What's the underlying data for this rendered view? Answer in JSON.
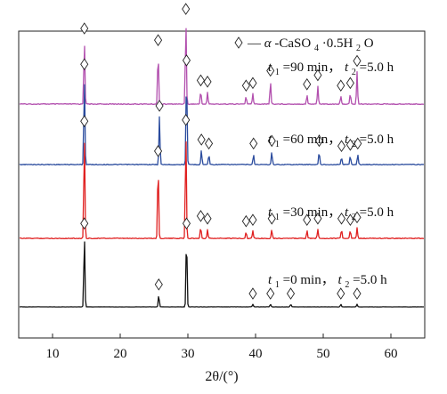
{
  "chart_data": {
    "type": "line",
    "title": "",
    "xlabel": "2θ/(°)",
    "ylabel": "",
    "xlim": [
      5,
      65
    ],
    "x_ticks": [
      10,
      20,
      30,
      40,
      50,
      60
    ],
    "y_ticks": [],
    "grid": false,
    "legend": {
      "placement": "top-right",
      "marker": "diamond",
      "dash": "—",
      "alpha": "α",
      "phase": "-CaSO",
      "sub4": "4",
      "dot": "·0.5H",
      "sub2": "2",
      "o": "O"
    },
    "series": [
      {
        "color": "#b24fae",
        "label": {
          "t": "t",
          "sub1": "1",
          "eq1": "=90 min，",
          "sub2": "2",
          "eq2": "=5.0 h"
        },
        "peaks": [
          {
            "x": 14.7,
            "height": 1.0,
            "marked": true
          },
          {
            "x": 25.6,
            "height": 0.82,
            "marked": true
          },
          {
            "x": 29.7,
            "height": 1.3,
            "marked": true
          },
          {
            "x": 31.9,
            "height": 0.2,
            "marked": true
          },
          {
            "x": 32.9,
            "height": 0.18,
            "marked": true
          },
          {
            "x": 38.6,
            "height": 0.12,
            "marked": true
          },
          {
            "x": 39.6,
            "height": 0.16,
            "marked": true
          },
          {
            "x": 42.2,
            "height": 0.35,
            "marked": true
          },
          {
            "x": 47.6,
            "height": 0.14,
            "marked": true
          },
          {
            "x": 49.2,
            "height": 0.28,
            "marked": true
          },
          {
            "x": 52.6,
            "height": 0.12,
            "marked": true
          },
          {
            "x": 54.0,
            "height": 0.16,
            "marked": true
          },
          {
            "x": 55.0,
            "height": 0.5,
            "marked": true
          }
        ]
      },
      {
        "color": "#2b4c9e",
        "label": {
          "t": "t",
          "sub1": "1",
          "eq1": "=60 min，",
          "sub2": "2",
          "eq2": "=5.0 h"
        },
        "peaks": [
          {
            "x": 14.7,
            "height": 1.38,
            "marked": true
          },
          {
            "x": 25.8,
            "height": 0.74,
            "marked": true
          },
          {
            "x": 29.8,
            "height": 1.44,
            "marked": true
          },
          {
            "x": 32.0,
            "height": 0.22,
            "marked": true
          },
          {
            "x": 33.1,
            "height": 0.16,
            "marked": true
          },
          {
            "x": 39.7,
            "height": 0.16,
            "marked": true
          },
          {
            "x": 42.4,
            "height": 0.2,
            "marked": true
          },
          {
            "x": 49.4,
            "height": 0.2,
            "marked": true
          },
          {
            "x": 52.7,
            "height": 0.12,
            "marked": true
          },
          {
            "x": 54.0,
            "height": 0.14,
            "marked": true
          },
          {
            "x": 55.1,
            "height": 0.16,
            "marked": true
          }
        ]
      },
      {
        "color": "#e02020",
        "label": {
          "t": "t",
          "sub1": "1",
          "eq1": "=30 min，",
          "sub2": "2",
          "eq2": "=5.0 h"
        },
        "peaks": [
          {
            "x": 14.7,
            "height": 1.64,
            "marked": true
          },
          {
            "x": 25.6,
            "height": 1.18,
            "marked": true
          },
          {
            "x": 29.7,
            "height": 1.66,
            "marked": true
          },
          {
            "x": 31.9,
            "height": 0.18,
            "marked": true
          },
          {
            "x": 32.9,
            "height": 0.14,
            "marked": true
          },
          {
            "x": 38.6,
            "height": 0.1,
            "marked": true
          },
          {
            "x": 39.6,
            "height": 0.12,
            "marked": true
          },
          {
            "x": 42.4,
            "height": 0.14,
            "marked": true
          },
          {
            "x": 47.6,
            "height": 0.12,
            "marked": true
          },
          {
            "x": 49.2,
            "height": 0.14,
            "marked": true
          },
          {
            "x": 52.7,
            "height": 0.14,
            "marked": true
          },
          {
            "x": 54.0,
            "height": 0.12,
            "marked": true
          },
          {
            "x": 55.0,
            "height": 0.16,
            "marked": true
          }
        ]
      },
      {
        "color": "#111111",
        "label": {
          "t": "t",
          "sub1": "1",
          "eq1": "=0 min，",
          "sub2": "2",
          "eq2": "=5.0 h"
        },
        "peaks": [
          {
            "x": 14.7,
            "height": 1.12,
            "marked": true
          },
          {
            "x": 25.7,
            "height": 0.18,
            "marked": true
          },
          {
            "x": 29.8,
            "height": 1.12,
            "marked": true
          },
          {
            "x": 39.6,
            "height": 0.04,
            "marked": true
          },
          {
            "x": 42.2,
            "height": 0.04,
            "marked": true
          },
          {
            "x": 45.2,
            "height": 0.04,
            "marked": true
          },
          {
            "x": 52.6,
            "height": 0.04,
            "marked": true
          },
          {
            "x": 55.0,
            "height": 0.04,
            "marked": true
          }
        ]
      }
    ]
  }
}
